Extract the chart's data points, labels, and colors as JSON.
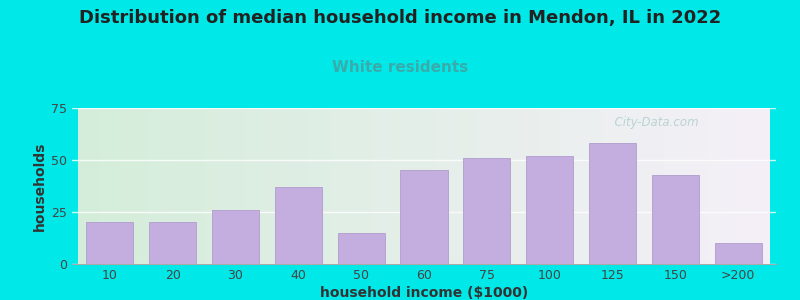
{
  "title": "Distribution of median household income in Mendon, IL in 2022",
  "subtitle": "White residents",
  "xlabel": "household income ($1000)",
  "ylabel": "households",
  "categories": [
    "10",
    "20",
    "30",
    "40",
    "50",
    "60",
    "75",
    "100",
    "125",
    "150",
    ">200"
  ],
  "values": [
    20,
    20,
    26,
    37,
    15,
    45,
    51,
    52,
    58,
    43,
    10
  ],
  "bar_color": "#c4aee0",
  "bar_edge_color": "#b09ccc",
  "background_outer": "#00e8e8",
  "background_inner_gradient_left": "#d4edda",
  "background_inner_gradient_right": "#f5f0f8",
  "ylim": [
    0,
    75
  ],
  "yticks": [
    0,
    25,
    50,
    75
  ],
  "title_fontsize": 13,
  "subtitle_fontsize": 11,
  "subtitle_color": "#3aabab",
  "title_color": "#222222",
  "axis_label_fontsize": 10,
  "tick_fontsize": 9,
  "watermark": "  City-Data.com",
  "watermark_color": "#b0cece"
}
